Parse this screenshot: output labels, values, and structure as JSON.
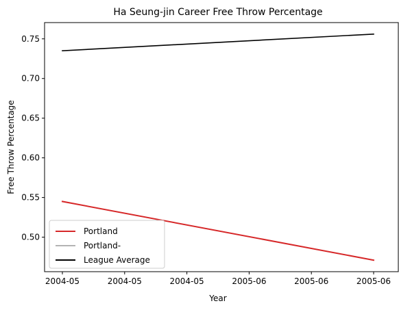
{
  "chart_data": {
    "type": "line",
    "title": "Ha Seung-jin Career Free Throw Percentage",
    "xlabel": "Year",
    "ylabel": "Free Throw Percentage",
    "x_tick_labels": [
      "2004-05",
      "2004-05",
      "2004-05",
      "2005-06",
      "2005-06",
      "2005-06"
    ],
    "x_points": [
      "2004-05",
      "2005-06"
    ],
    "ylim": [
      0.4565,
      0.7705
    ],
    "y_ticks": [
      0.5,
      0.55,
      0.6,
      0.65,
      0.7,
      0.75
    ],
    "y_tick_labels": [
      "0.50",
      "0.55",
      "0.60",
      "0.65",
      "0.70",
      "0.75"
    ],
    "grid": false,
    "legend_position": "lower-left",
    "series": [
      {
        "name": "Portland",
        "color": "#d62728",
        "values": [
          0.545,
          0.471
        ]
      },
      {
        "name": "Portland-",
        "color": "#b3b3b3",
        "values": []
      },
      {
        "name": "League Average",
        "color": "#000000",
        "values": [
          0.735,
          0.756
        ]
      }
    ]
  }
}
